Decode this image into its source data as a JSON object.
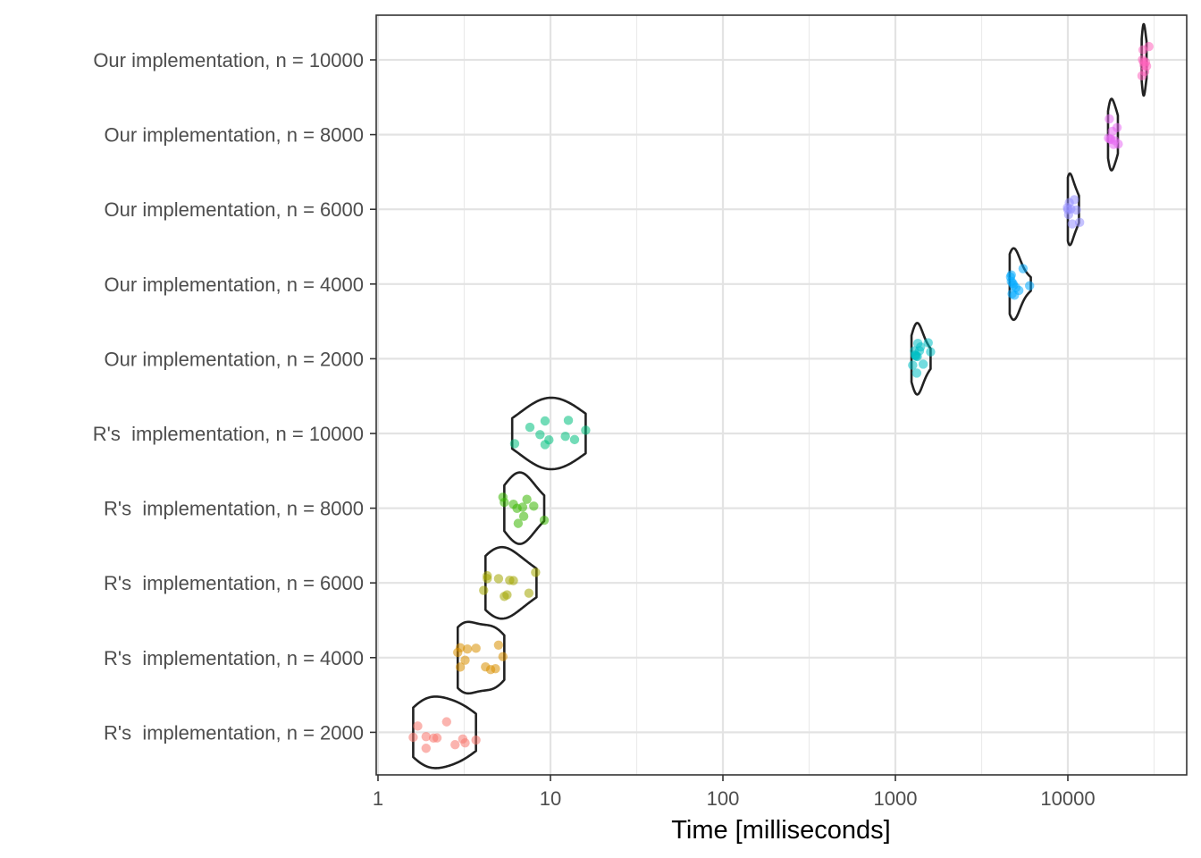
{
  "chart_data": {
    "type": "violin",
    "title": "",
    "xlabel": "Time [milliseconds]",
    "ylabel": "",
    "x_scale": "log10",
    "xlim": [
      1,
      45000
    ],
    "x_ticks": [
      1,
      10,
      100,
      1000,
      10000
    ],
    "x_tick_labels": [
      "1",
      "10",
      "100",
      "1000",
      "10000"
    ],
    "grid": true,
    "legend": "none",
    "categories": [
      "R's  implementation, n = 2000",
      "R's  implementation, n = 4000",
      "R's  implementation, n = 6000",
      "R's  implementation, n = 8000",
      "R's  implementation, n = 10000",
      "Our implementation, n = 2000",
      "Our implementation, n = 4000",
      "Our implementation, n = 6000",
      "Our implementation, n = 8000",
      "Our implementation, n = 10000"
    ],
    "series": [
      {
        "color": "#F8766D",
        "range": [
          1.6,
          3.7
        ],
        "points": [
          1.6,
          1.7,
          1.9,
          1.9,
          2.1,
          2.2,
          2.5,
          2.8,
          3.1,
          3.2,
          3.7
        ]
      },
      {
        "color": "#D89000",
        "range": [
          2.9,
          5.4
        ],
        "points": [
          2.9,
          3.0,
          3.0,
          3.2,
          3.3,
          3.7,
          4.2,
          4.5,
          4.8,
          5.0,
          5.3
        ]
      },
      {
        "color": "#A3A500",
        "range": [
          4.2,
          8.3
        ],
        "points": [
          4.1,
          4.3,
          4.3,
          5.0,
          5.4,
          5.6,
          5.8,
          6.1,
          7.5,
          8.2
        ]
      },
      {
        "color": "#39B600",
        "range": [
          5.4,
          9.2
        ],
        "points": [
          5.3,
          5.4,
          6.1,
          6.4,
          6.5,
          6.9,
          7.0,
          7.3,
          8.0,
          9.2
        ]
      },
      {
        "color": "#00BF7D",
        "range": [
          6.0,
          16.0
        ],
        "points": [
          6.2,
          7.6,
          8.7,
          9.3,
          9.8,
          9.3,
          12.2,
          12.7,
          13.8,
          16.0
        ]
      },
      {
        "color": "#00BFC4",
        "range": [
          1240,
          1600
        ],
        "points": [
          1260,
          1290,
          1300,
          1310,
          1320,
          1330,
          1340,
          1350,
          1380,
          1400,
          1450,
          1550,
          1600
        ]
      },
      {
        "color": "#00A9FF",
        "range": [
          4600,
          6100
        ],
        "points": [
          4650,
          4700,
          4700,
          4750,
          4800,
          4850,
          4900,
          5000,
          5200,
          5500,
          6000
        ]
      },
      {
        "color": "#9590FF",
        "range": [
          10000,
          11600
        ],
        "points": [
          9950,
          10000,
          10100,
          10200,
          10400,
          10600,
          10900,
          11200,
          11700
        ]
      },
      {
        "color": "#E76BF3",
        "range": [
          17100,
          19500
        ],
        "points": [
          17200,
          17400,
          17600,
          17800,
          18100,
          18400,
          18700,
          19300,
          19600
        ]
      },
      {
        "color": "#FF62BC",
        "range": [
          26800,
          28600
        ],
        "points": [
          26900,
          27100,
          27300,
          27500,
          27700,
          27900,
          28200,
          28600,
          29500
        ]
      }
    ]
  }
}
